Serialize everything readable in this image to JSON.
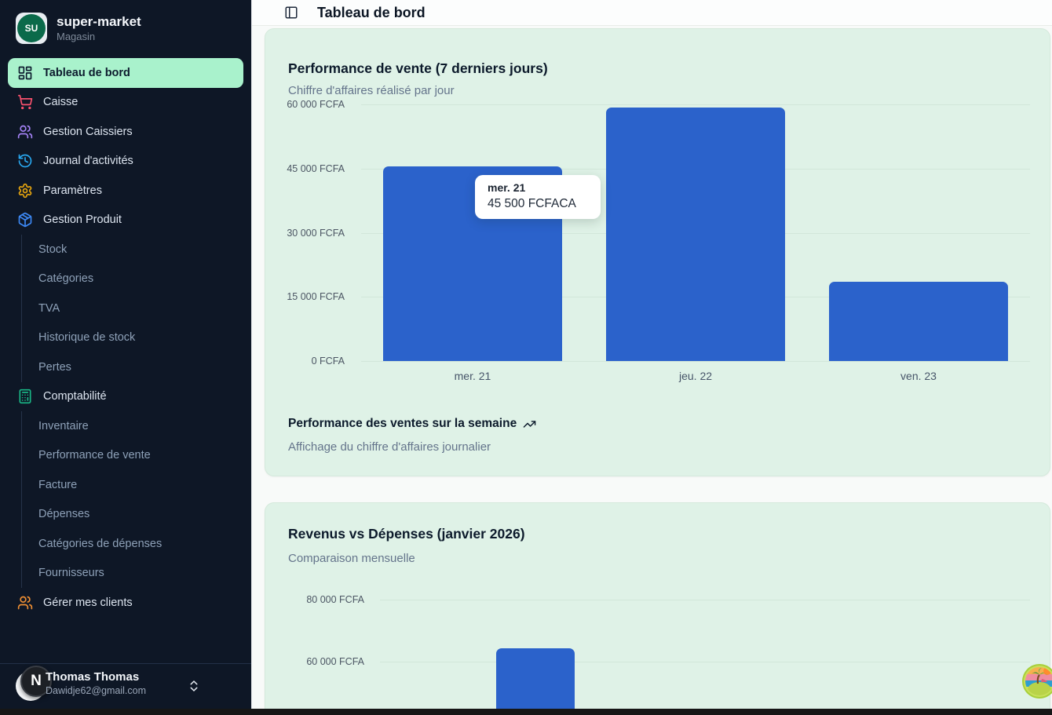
{
  "sidebar": {
    "brand": {
      "initials": "SU",
      "name": "super-market",
      "subtitle": "Magasin"
    },
    "items": [
      {
        "label": "Tableau de bord",
        "icon": "layout-dashboard-icon",
        "active": true,
        "icon_color": "#0d1b2e"
      },
      {
        "label": "Caisse",
        "icon": "shopping-cart-icon",
        "icon_color": "#f9516d"
      },
      {
        "label": "Gestion Caissiers",
        "icon": "users-icon",
        "icon_color": "#a583f7"
      },
      {
        "label": "Journal d'activités",
        "icon": "history-icon",
        "icon_color": "#29a8f0"
      },
      {
        "label": "Paramètres",
        "icon": "gear-icon",
        "icon_color": "#e6a50f"
      },
      {
        "label": "Gestion Produit",
        "icon": "package-icon",
        "icon_color": "#3d89f5",
        "children": [
          {
            "label": "Stock"
          },
          {
            "label": "Catégories"
          },
          {
            "label": "TVA"
          },
          {
            "label": "Historique de stock"
          },
          {
            "label": "Pertes"
          }
        ]
      },
      {
        "label": "Comptabilité",
        "icon": "calculator-icon",
        "icon_color": "#19b786",
        "children": [
          {
            "label": "Inventaire"
          },
          {
            "label": "Performance de vente"
          },
          {
            "label": "Facture"
          },
          {
            "label": "Dépenses"
          },
          {
            "label": "Catégories de dépenses"
          },
          {
            "label": "Fournisseurs"
          }
        ]
      },
      {
        "label": "Gérer mes clients",
        "icon": "users-icon",
        "icon_color": "#ef8f33"
      }
    ],
    "user": {
      "name": "Thomas Thomas",
      "email": "Dawidje62@gmail.com",
      "badge": "N"
    }
  },
  "header": {
    "title": "Tableau de bord"
  },
  "cards": [
    {
      "title": "Performance de vente (7 derniers jours)",
      "subtitle": "Chiffre d'affaires réalisé par jour",
      "footer_title": "Performance des ventes sur la semaine",
      "footer_subtitle": "Affichage du chiffre d'affaires journalier"
    },
    {
      "title": "Revenus vs Dépenses (janvier 2026)",
      "subtitle": "Comparaison mensuelle"
    }
  ],
  "tooltip": {
    "title": "mer. 21",
    "value": "45 500 FCFACA"
  },
  "colors": {
    "bar_blue": "#2b62cb",
    "card_mint": "#dff2e7",
    "sidebar_bg": "#0e1726",
    "active_pill": "#a9f2cc"
  },
  "chart_data": [
    {
      "type": "bar",
      "title": "Performance de vente (7 derniers jours)",
      "subtitle": "Chiffre d'affaires réalisé par jour",
      "categories": [
        "mer. 21",
        "jeu. 22",
        "ven. 23"
      ],
      "series": [
        {
          "name": "Chiffre d'affaires",
          "values": [
            45500,
            59300,
            18500
          ]
        }
      ],
      "unit": "FCFA",
      "ylim": [
        0,
        60000
      ],
      "grid": true,
      "legend": "none",
      "yticks": [
        {
          "value": 0,
          "label": "0 FCFA"
        },
        {
          "value": 15000,
          "label": "15 000 FCFA"
        },
        {
          "value": 30000,
          "label": "30 000 FCFA"
        },
        {
          "value": 45000,
          "label": "45 000 FCFA"
        },
        {
          "value": 60000,
          "label": "60 000 FCFA"
        }
      ],
      "tooltip": {
        "category": "mer. 21",
        "value_label": "45 500 FCFACA"
      },
      "note": "mer. 21 value from tooltip; jeu. 22 and ven. 23 estimated from gridlines"
    },
    {
      "type": "bar",
      "title": "Revenus vs Dépenses (janvier 2026)",
      "subtitle": "Comparaison mensuelle",
      "categories": [
        "(label cut off at viewport bottom)"
      ],
      "series": [
        {
          "name": "Revenus",
          "values": [
            64300
          ]
        }
      ],
      "unit": "FCFA",
      "ylim": [
        0,
        80000
      ],
      "grid": true,
      "yticks": [
        {
          "value": 80000,
          "label": "80 000 FCFA"
        },
        {
          "value": 60000,
          "label": "60 000 FCFA"
        }
      ],
      "note": "chart cut off by bottom of viewport; single blue bar visible, value estimated from gridlines"
    }
  ]
}
